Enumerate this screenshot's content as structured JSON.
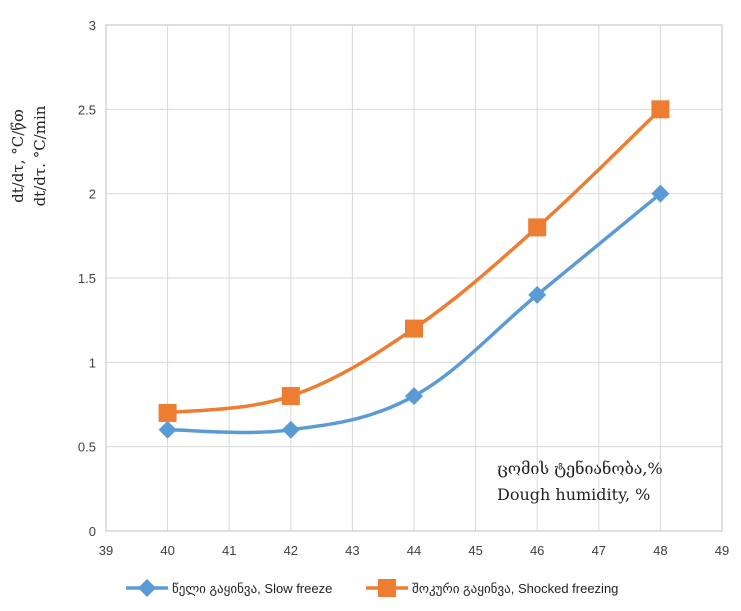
{
  "chart_data": {
    "type": "line",
    "title": "",
    "ylabel_lines": [
      "dt/dτ, °C/წთ",
      "dt/dτ. °C/min"
    ],
    "annotation_lines": [
      "ცომის ტენიანობა,%",
      "Dough  humidity, %"
    ],
    "xlim": [
      39,
      49
    ],
    "ylim": [
      0,
      3
    ],
    "xticks": [
      39,
      40,
      41,
      42,
      43,
      44,
      45,
      46,
      47,
      48,
      49
    ],
    "yticks": [
      0,
      0.5,
      1,
      1.5,
      2,
      2.5,
      3
    ],
    "grid": true,
    "legend_position": "bottom",
    "series": [
      {
        "name": "წელი გაყინვა, Slow freeze",
        "color": "#5b9bd5",
        "marker": "diamond",
        "x": [
          40,
          42,
          44,
          46,
          48
        ],
        "values": [
          0.6,
          0.6,
          0.8,
          1.4,
          2.0
        ]
      },
      {
        "name": "შოკური გაყინვა, Shocked freezing",
        "color": "#ed7d31",
        "marker": "square",
        "x": [
          40,
          42,
          44,
          46,
          48
        ],
        "values": [
          0.7,
          0.8,
          1.2,
          1.8,
          2.5
        ]
      }
    ]
  }
}
